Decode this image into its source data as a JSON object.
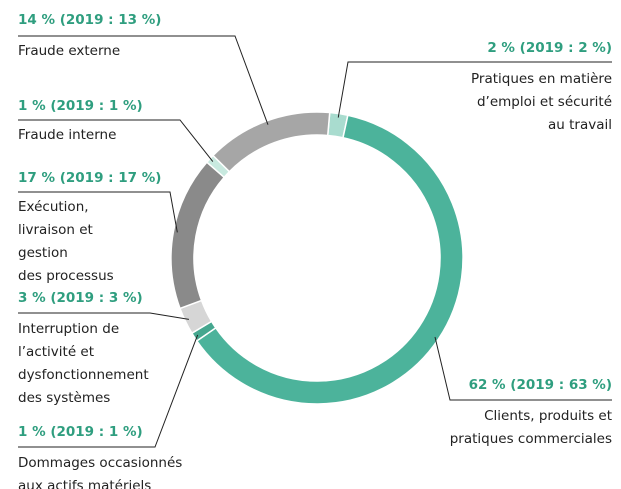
{
  "chart_data": {
    "type": "donut",
    "categories": [
      "Pratiques en matière\nd’emploi et sécurité\nau travail",
      "Clients, produits et\npratiques commerciales",
      "Dommages occasionnés\naux actifs matériels",
      "Interruption de\nl’activité et\ndysfonctionnement\ndes systèmes",
      "Exécution,\nlivraison et\ngestion\ndes processus",
      "Fraude interne",
      "Fraude externe"
    ],
    "values": [
      2,
      62,
      1,
      3,
      17,
      1,
      14
    ],
    "value_labels": [
      "2 % (2019 : 2 %)",
      "62 % (2019 : 63 %)",
      "1 % (2019 : 1 %)",
      "3 % (2019 : 3 %)",
      "17 % (2019 : 17 %)",
      "1 % (2019 : 1 %)",
      "14 % (2019 : 13 %)"
    ],
    "colors": [
      "#a9dccf",
      "#4cb39b",
      "#45a78f",
      "#d6d6d6",
      "#8a8a8a",
      "#c8e9df",
      "#a6a6a6"
    ]
  }
}
